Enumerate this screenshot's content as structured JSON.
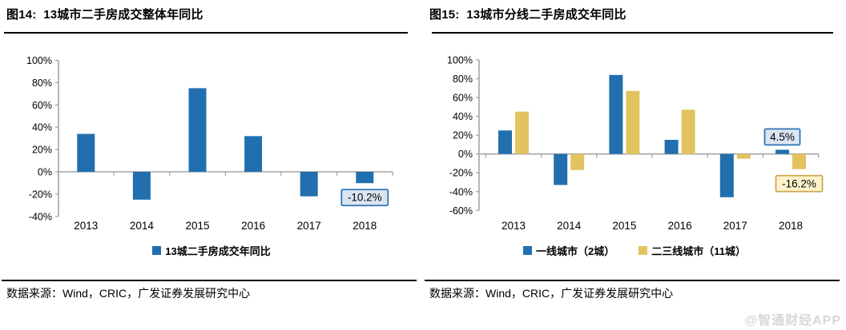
{
  "page": {
    "background": "#ffffff",
    "watermark": "@智通财经APP"
  },
  "figures": [
    {
      "title": "图14:  13城市二手房成交整体年同比",
      "source": "数据来源：Wind，CRIC，广发证券发展研究中心"
    },
    {
      "title": "图15:  13城市分线二手房成交年同比",
      "source": "数据来源：Wind，CRIC，广发证券发展研究中心"
    }
  ],
  "chart_data": [
    {
      "type": "bar",
      "title": "13城市二手房成交整体年同比",
      "categories": [
        "2013",
        "2014",
        "2015",
        "2016",
        "2017",
        "2018"
      ],
      "series": [
        {
          "name": "13城二手房成交年同比",
          "color": "#216FAE",
          "values": [
            34,
            -25,
            75,
            32,
            -22,
            -10.2
          ]
        }
      ],
      "ylim": [
        -40,
        100
      ],
      "ytick_step": 20,
      "ytick_suffix": "%",
      "grid": false,
      "legend_position": "bottom",
      "annotations": [
        {
          "text": "-10.2%",
          "series": 0,
          "category": 5,
          "position": "below",
          "style": "blue"
        }
      ]
    },
    {
      "type": "bar",
      "title": "13城市分线二手房成交年同比",
      "categories": [
        "2013",
        "2014",
        "2015",
        "2016",
        "2017",
        "2018"
      ],
      "series": [
        {
          "name": "一线城市（2城）",
          "color": "#216FAE",
          "values": [
            25,
            -33,
            84,
            15,
            -46,
            4.5
          ]
        },
        {
          "name": "二三线城市（11城）",
          "color": "#E2C35F",
          "values": [
            45,
            -17,
            67,
            47,
            -5,
            -16.2
          ]
        }
      ],
      "ylim": [
        -60,
        100
      ],
      "ytick_step": 20,
      "ytick_suffix": "%",
      "grid": false,
      "legend_position": "bottom",
      "annotations": [
        {
          "text": "4.5%",
          "series": 0,
          "category": 5,
          "position": "above",
          "style": "blue"
        },
        {
          "text": "-16.2%",
          "series": 1,
          "category": 5,
          "position": "below",
          "style": "yellow"
        }
      ]
    }
  ],
  "annotation_styles": {
    "blue": {
      "fill": "#DBE5F1",
      "border": "#2E75B6"
    },
    "yellow": {
      "fill": "#FFF2CC",
      "border": "#CCA94E"
    }
  },
  "axis_color": "#A6A6A6",
  "text_color": "#000000"
}
